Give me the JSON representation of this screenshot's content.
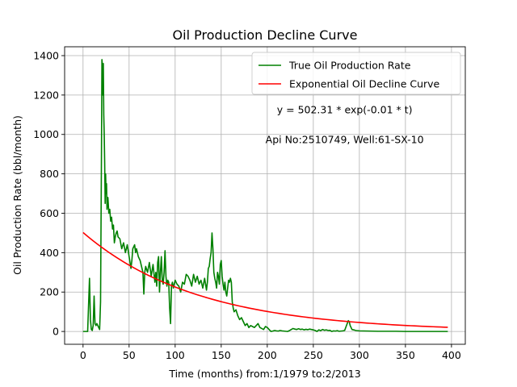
{
  "chart_data": {
    "type": "line",
    "title": "Oil Production Decline Curve",
    "xlabel": "Time (months) from:1/1979 to:2/2013",
    "ylabel": "Oil Production Rate (bbl/month)",
    "xlim": [
      -20,
      415
    ],
    "ylim": [
      -65,
      1445
    ],
    "xticks": [
      0,
      50,
      100,
      150,
      200,
      250,
      300,
      350,
      400
    ],
    "yticks": [
      0,
      200,
      400,
      600,
      800,
      1000,
      1200,
      1400
    ],
    "grid": true,
    "legend_position": "top-right",
    "annotations": [
      {
        "text": "y = 502.31 * exp(-0.01 * t)",
        "x": 284,
        "y": 1125
      },
      {
        "text": "Api No:2510749, Well:61-SX-10",
        "x": 284,
        "y": 975
      }
    ],
    "series": [
      {
        "name": "True Oil Production Rate",
        "color": "#008000",
        "points": [
          [
            0,
            0
          ],
          [
            5,
            0
          ],
          [
            7,
            270
          ],
          [
            8,
            60
          ],
          [
            9,
            10
          ],
          [
            10,
            5
          ],
          [
            11,
            30
          ],
          [
            12,
            180
          ],
          [
            13,
            40
          ],
          [
            14,
            30
          ],
          [
            15,
            40
          ],
          [
            16,
            30
          ],
          [
            17,
            20
          ],
          [
            18,
            10
          ],
          [
            19,
            150
          ],
          [
            20,
            900
          ],
          [
            20.5,
            1380
          ],
          [
            21,
            1350
          ],
          [
            21.5,
            1200
          ],
          [
            22,
            1360
          ],
          [
            22.5,
            1100
          ],
          [
            23,
            1000
          ],
          [
            23.5,
            850
          ],
          [
            24,
            650
          ],
          [
            24.5,
            800
          ],
          [
            25,
            700
          ],
          [
            25.5,
            750
          ],
          [
            26,
            620
          ],
          [
            27,
            680
          ],
          [
            28,
            600
          ],
          [
            29,
            620
          ],
          [
            30,
            560
          ],
          [
            31,
            580
          ],
          [
            32,
            520
          ],
          [
            33,
            540
          ],
          [
            34,
            450
          ],
          [
            35,
            480
          ],
          [
            36,
            500
          ],
          [
            37,
            510
          ],
          [
            38,
            480
          ],
          [
            40,
            470
          ],
          [
            42,
            420
          ],
          [
            44,
            450
          ],
          [
            46,
            400
          ],
          [
            48,
            440
          ],
          [
            50,
            380
          ],
          [
            52,
            320
          ],
          [
            53,
            360
          ],
          [
            54,
            420
          ],
          [
            56,
            440
          ],
          [
            57,
            400
          ],
          [
            58,
            420
          ],
          [
            60,
            380
          ],
          [
            62,
            360
          ],
          [
            64,
            320
          ],
          [
            65,
            300
          ],
          [
            66,
            190
          ],
          [
            67,
            300
          ],
          [
            68,
            330
          ],
          [
            70,
            300
          ],
          [
            72,
            350
          ],
          [
            74,
            280
          ],
          [
            76,
            340
          ],
          [
            78,
            250
          ],
          [
            79,
            300
          ],
          [
            80,
            230
          ],
          [
            81,
            350
          ],
          [
            82,
            380
          ],
          [
            83,
            200
          ],
          [
            84,
            300
          ],
          [
            85,
            380
          ],
          [
            86,
            260
          ],
          [
            87,
            240
          ],
          [
            88,
            300
          ],
          [
            89,
            410
          ],
          [
            90,
            280
          ],
          [
            91,
            230
          ],
          [
            92,
            260
          ],
          [
            93,
            250
          ],
          [
            94,
            120
          ],
          [
            95,
            40
          ],
          [
            96,
            230
          ],
          [
            97,
            250
          ],
          [
            98,
            220
          ],
          [
            99,
            240
          ],
          [
            100,
            260
          ],
          [
            102,
            240
          ],
          [
            104,
            230
          ],
          [
            106,
            200
          ],
          [
            108,
            250
          ],
          [
            110,
            240
          ],
          [
            112,
            290
          ],
          [
            114,
            280
          ],
          [
            116,
            260
          ],
          [
            118,
            230
          ],
          [
            120,
            290
          ],
          [
            122,
            250
          ],
          [
            124,
            280
          ],
          [
            126,
            240
          ],
          [
            128,
            260
          ],
          [
            130,
            220
          ],
          [
            132,
            270
          ],
          [
            134,
            210
          ],
          [
            135,
            250
          ],
          [
            136,
            320
          ],
          [
            137,
            330
          ],
          [
            138,
            370
          ],
          [
            139,
            400
          ],
          [
            140,
            500
          ],
          [
            141,
            420
          ],
          [
            142,
            300
          ],
          [
            143,
            270
          ],
          [
            144,
            250
          ],
          [
            145,
            220
          ],
          [
            146,
            300
          ],
          [
            147,
            280
          ],
          [
            148,
            240
          ],
          [
            149,
            340
          ],
          [
            150,
            360
          ],
          [
            151,
            280
          ],
          [
            152,
            240
          ],
          [
            153,
            210
          ],
          [
            154,
            250
          ],
          [
            155,
            200
          ],
          [
            156,
            180
          ],
          [
            157,
            220
          ],
          [
            158,
            260
          ],
          [
            159,
            250
          ],
          [
            160,
            270
          ],
          [
            161,
            250
          ],
          [
            162,
            150
          ],
          [
            163,
            120
          ],
          [
            164,
            100
          ],
          [
            166,
            110
          ],
          [
            168,
            80
          ],
          [
            170,
            60
          ],
          [
            172,
            70
          ],
          [
            174,
            50
          ],
          [
            176,
            30
          ],
          [
            178,
            40
          ],
          [
            180,
            20
          ],
          [
            182,
            30
          ],
          [
            184,
            25
          ],
          [
            186,
            20
          ],
          [
            188,
            30
          ],
          [
            190,
            40
          ],
          [
            192,
            20
          ],
          [
            194,
            15
          ],
          [
            196,
            10
          ],
          [
            198,
            25
          ],
          [
            200,
            20
          ],
          [
            202,
            10
          ],
          [
            204,
            0
          ],
          [
            206,
            2
          ],
          [
            208,
            5
          ],
          [
            210,
            3
          ],
          [
            212,
            2
          ],
          [
            214,
            5
          ],
          [
            216,
            3
          ],
          [
            218,
            2
          ],
          [
            220,
            1
          ],
          [
            222,
            0
          ],
          [
            224,
            4
          ],
          [
            226,
            10
          ],
          [
            228,
            15
          ],
          [
            230,
            12
          ],
          [
            232,
            10
          ],
          [
            234,
            14
          ],
          [
            236,
            10
          ],
          [
            238,
            12
          ],
          [
            240,
            8
          ],
          [
            242,
            11
          ],
          [
            244,
            9
          ],
          [
            246,
            12
          ],
          [
            248,
            10
          ],
          [
            250,
            8
          ],
          [
            252,
            5
          ],
          [
            254,
            0
          ],
          [
            256,
            8
          ],
          [
            258,
            4
          ],
          [
            260,
            10
          ],
          [
            262,
            6
          ],
          [
            264,
            8
          ],
          [
            266,
            5
          ],
          [
            268,
            6
          ],
          [
            270,
            0
          ],
          [
            272,
            3
          ],
          [
            274,
            2
          ],
          [
            276,
            4
          ],
          [
            278,
            1
          ],
          [
            280,
            2
          ],
          [
            282,
            3
          ],
          [
            284,
            5
          ],
          [
            286,
            30
          ],
          [
            288,
            55
          ],
          [
            289,
            50
          ],
          [
            290,
            30
          ],
          [
            292,
            10
          ],
          [
            294,
            8
          ],
          [
            296,
            5
          ],
          [
            300,
            3
          ],
          [
            310,
            2
          ],
          [
            320,
            1
          ],
          [
            330,
            1
          ],
          [
            340,
            1
          ],
          [
            350,
            0
          ],
          [
            360,
            0
          ],
          [
            370,
            0
          ],
          [
            380,
            0
          ],
          [
            390,
            0
          ],
          [
            396,
            0
          ]
        ]
      },
      {
        "name": "Exponential Oil Decline Curve",
        "color": "#ff0000",
        "model": {
          "a": 502.31,
          "b": -0.008,
          "t_start": 0,
          "t_end": 396
        }
      }
    ]
  }
}
